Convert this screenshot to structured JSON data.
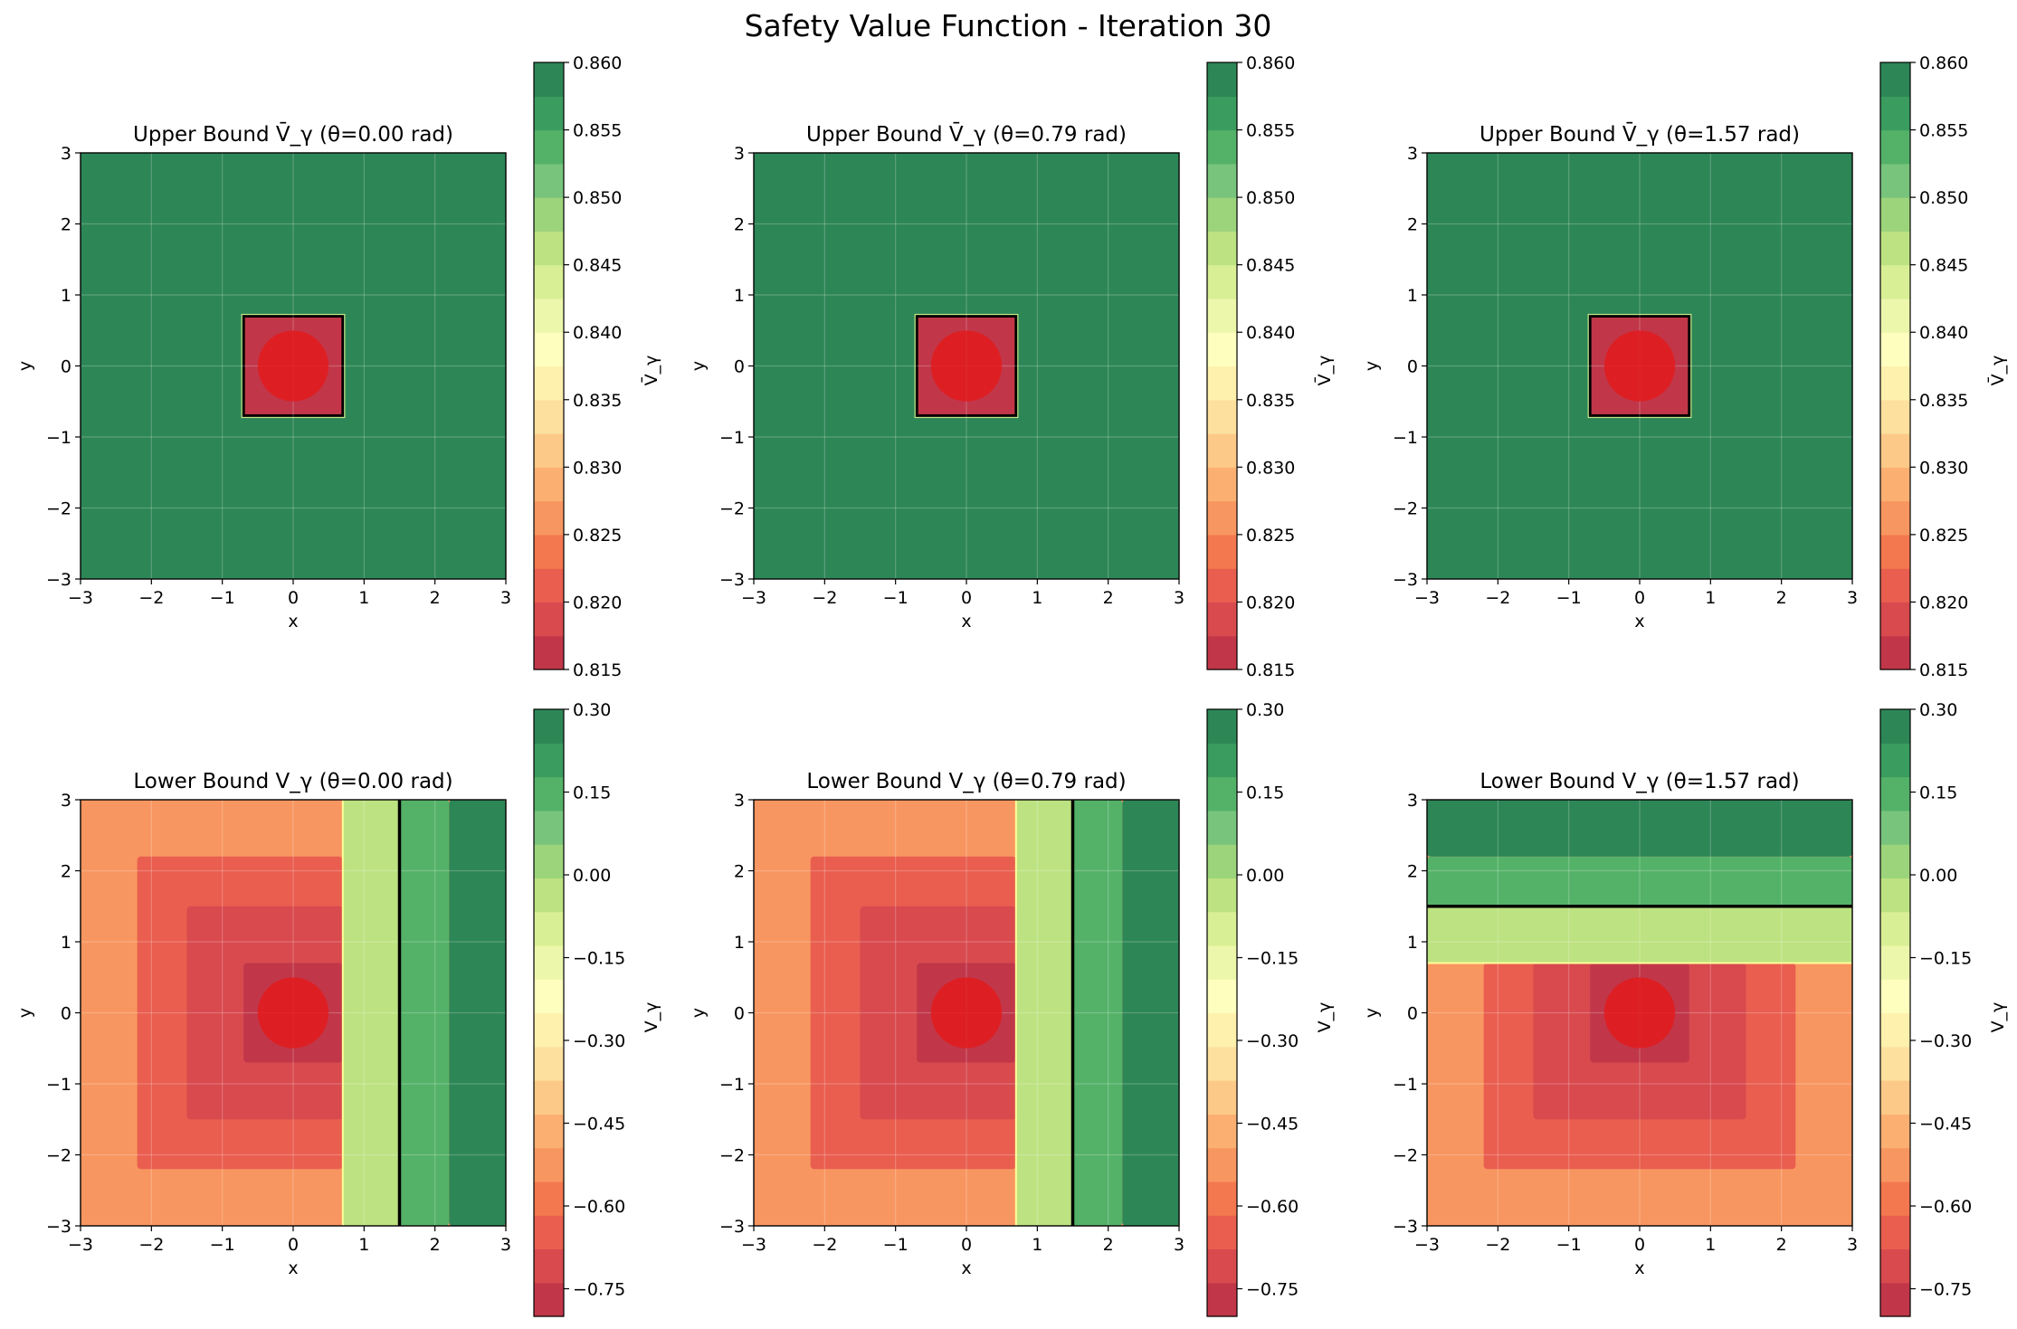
{
  "title": "Safety Value Function - Iteration 30",
  "colormap_colors": [
    "#c13749",
    "#d84a4e",
    "#e95e4f",
    "#f3784f",
    "#f89661",
    "#fbb072",
    "#fdc988",
    "#fde09e",
    "#fef0ad",
    "#fefebe",
    "#ecf7ac",
    "#d9ef95",
    "#bde281",
    "#9cd47b",
    "#78c47d",
    "#54b268",
    "#3a9c5e",
    "#2d8656"
  ],
  "obstacle": {
    "square_half_width": 0.7,
    "circle_radius": 0.5,
    "color": "#e31a1c"
  },
  "chart_data": [
    {
      "type": "heatmap",
      "title": "Upper Bound V̄_γ (θ=0.00 rad)",
      "xlabel": "x",
      "ylabel": "y",
      "xlim": [
        -3,
        3
      ],
      "ylim": [
        -3,
        3
      ],
      "xticks": [
        -3,
        -2,
        -1,
        0,
        1,
        2,
        3
      ],
      "yticks": [
        -3,
        -2,
        -1,
        0,
        1,
        2,
        3
      ],
      "colorbar": {
        "label": "V̄_γ",
        "range": [
          0.815,
          0.86
        ],
        "ticks": [
          0.815,
          0.82,
          0.825,
          0.83,
          0.835,
          0.84,
          0.845,
          0.85,
          0.855,
          0.86
        ],
        "decimals": 3
      },
      "background_value": 0.86,
      "regions": [],
      "contour_line": null
    },
    {
      "type": "heatmap",
      "title": "Upper Bound V̄_γ (θ=0.79 rad)",
      "xlabel": "x",
      "ylabel": "y",
      "xlim": [
        -3,
        3
      ],
      "ylim": [
        -3,
        3
      ],
      "xticks": [
        -3,
        -2,
        -1,
        0,
        1,
        2,
        3
      ],
      "yticks": [
        -3,
        -2,
        -1,
        0,
        1,
        2,
        3
      ],
      "colorbar": {
        "label": "V̄_γ",
        "range": [
          0.815,
          0.86
        ],
        "ticks": [
          0.815,
          0.82,
          0.825,
          0.83,
          0.835,
          0.84,
          0.845,
          0.85,
          0.855,
          0.86
        ],
        "decimals": 3
      },
      "background_value": 0.86,
      "regions": [],
      "contour_line": null
    },
    {
      "type": "heatmap",
      "title": "Upper Bound V̄_γ (θ=1.57 rad)",
      "xlabel": "x",
      "ylabel": "y",
      "xlim": [
        -3,
        3
      ],
      "ylim": [
        -3,
        3
      ],
      "xticks": [
        -3,
        -2,
        -1,
        0,
        1,
        2,
        3
      ],
      "yticks": [
        -3,
        -2,
        -1,
        0,
        1,
        2,
        3
      ],
      "colorbar": {
        "label": "V̄_γ",
        "range": [
          0.815,
          0.86
        ],
        "ticks": [
          0.815,
          0.82,
          0.825,
          0.83,
          0.835,
          0.84,
          0.845,
          0.85,
          0.855,
          0.86
        ],
        "decimals": 3
      },
      "background_value": 0.86,
      "regions": [],
      "contour_line": null
    },
    {
      "type": "heatmap",
      "title": "Lower Bound V_γ (θ=0.00 rad)",
      "xlabel": "x",
      "ylabel": "y",
      "xlim": [
        -3,
        3
      ],
      "ylim": [
        -3,
        3
      ],
      "xticks": [
        -3,
        -2,
        -1,
        0,
        1,
        2,
        3
      ],
      "yticks": [
        -3,
        -2,
        -1,
        0,
        1,
        2,
        3
      ],
      "colorbar": {
        "label": "V_γ",
        "range": [
          -0.8,
          0.3
        ],
        "ticks": [
          -0.75,
          -0.6,
          -0.45,
          -0.3,
          -0.15,
          0.0,
          0.15,
          0.3
        ],
        "decimals": 2
      },
      "background_value": -0.55,
      "regions": [
        {
          "x": [
            -2.2,
            0.7
          ],
          "y": [
            -2.2,
            2.2
          ],
          "value": -0.62
        },
        {
          "x": [
            -1.5,
            0.7
          ],
          "y": [
            -1.5,
            1.5
          ],
          "value": -0.68
        },
        {
          "x": [
            -0.7,
            0.7
          ],
          "y": [
            -0.7,
            0.7
          ],
          "value": -0.75
        },
        {
          "x": [
            0.7,
            1.5
          ],
          "y": [
            -3,
            3
          ],
          "value": -0.05
        },
        {
          "x": [
            1.5,
            2.2
          ],
          "y": [
            -3,
            3
          ],
          "value": 0.14
        },
        {
          "x": [
            2.2,
            3
          ],
          "y": [
            -3,
            3
          ],
          "value": 0.28
        }
      ],
      "contour_line": {
        "orientation": "vertical",
        "at": 1.5
      }
    },
    {
      "type": "heatmap",
      "title": "Lower Bound V_γ (θ=0.79 rad)",
      "xlabel": "x",
      "ylabel": "y",
      "xlim": [
        -3,
        3
      ],
      "ylim": [
        -3,
        3
      ],
      "xticks": [
        -3,
        -2,
        -1,
        0,
        1,
        2,
        3
      ],
      "yticks": [
        -3,
        -2,
        -1,
        0,
        1,
        2,
        3
      ],
      "colorbar": {
        "label": "V_γ",
        "range": [
          -0.8,
          0.3
        ],
        "ticks": [
          -0.75,
          -0.6,
          -0.45,
          -0.3,
          -0.15,
          0.0,
          0.15,
          0.3
        ],
        "decimals": 2
      },
      "background_value": -0.55,
      "regions": [
        {
          "x": [
            -2.2,
            0.7
          ],
          "y": [
            -2.2,
            2.2
          ],
          "value": -0.62
        },
        {
          "x": [
            -1.5,
            0.7
          ],
          "y": [
            -1.5,
            1.5
          ],
          "value": -0.68
        },
        {
          "x": [
            -0.7,
            0.7
          ],
          "y": [
            -0.7,
            0.7
          ],
          "value": -0.75
        },
        {
          "x": [
            0.7,
            1.5
          ],
          "y": [
            -3,
            3
          ],
          "value": -0.05
        },
        {
          "x": [
            1.5,
            2.2
          ],
          "y": [
            -3,
            3
          ],
          "value": 0.14
        },
        {
          "x": [
            2.2,
            3
          ],
          "y": [
            -3,
            3
          ],
          "value": 0.28
        }
      ],
      "contour_line": {
        "orientation": "vertical",
        "at": 1.5
      }
    },
    {
      "type": "heatmap",
      "title": "Lower Bound V_γ (θ=1.57 rad)",
      "xlabel": "x",
      "ylabel": "y",
      "xlim": [
        -3,
        3
      ],
      "ylim": [
        -3,
        3
      ],
      "xticks": [
        -3,
        -2,
        -1,
        0,
        1,
        2,
        3
      ],
      "yticks": [
        -3,
        -2,
        -1,
        0,
        1,
        2,
        3
      ],
      "colorbar": {
        "label": "V_γ",
        "range": [
          -0.8,
          0.3
        ],
        "ticks": [
          -0.75,
          -0.6,
          -0.45,
          -0.3,
          -0.15,
          0.0,
          0.15,
          0.3
        ],
        "decimals": 2
      },
      "background_value": -0.55,
      "regions": [
        {
          "x": [
            -2.2,
            2.2
          ],
          "y": [
            -2.2,
            0.7
          ],
          "value": -0.62
        },
        {
          "x": [
            -1.5,
            1.5
          ],
          "y": [
            -1.5,
            0.7
          ],
          "value": -0.68
        },
        {
          "x": [
            -0.7,
            0.7
          ],
          "y": [
            -0.7,
            0.7
          ],
          "value": -0.75
        },
        {
          "x": [
            -3,
            3
          ],
          "y": [
            0.7,
            1.5
          ],
          "value": -0.05
        },
        {
          "x": [
            -3,
            3
          ],
          "y": [
            1.5,
            2.2
          ],
          "value": 0.14
        },
        {
          "x": [
            -3,
            3
          ],
          "y": [
            2.2,
            3
          ],
          "value": 0.28
        }
      ],
      "contour_line": {
        "orientation": "horizontal",
        "at": 1.5
      }
    }
  ]
}
